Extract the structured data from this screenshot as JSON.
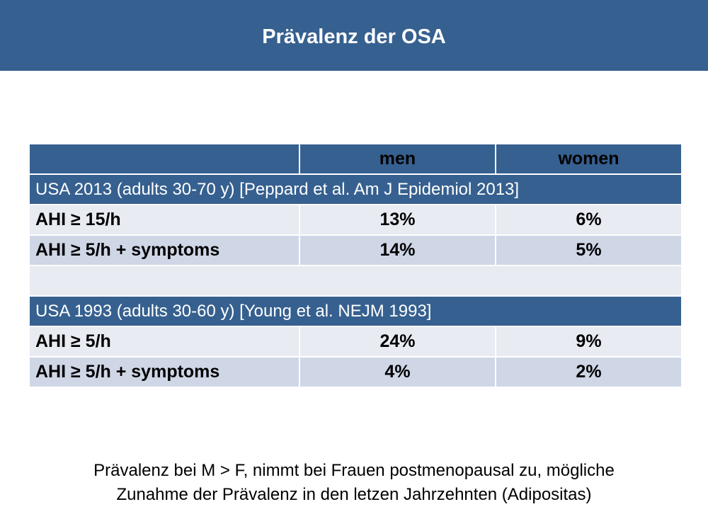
{
  "title": "Prävalenz der OSA",
  "table": {
    "headers": [
      "",
      "men",
      "women"
    ],
    "sections": [
      {
        "heading": "USA 2013 (adults 30-70 y) [Peppard et al. Am J Epidemiol 2013]",
        "rows": [
          {
            "label": "AHI ≥ 15/h",
            "men": "13%",
            "women": "6%"
          },
          {
            "label": "AHI ≥ 5/h + symptoms",
            "men": "14%",
            "women": "5%"
          }
        ]
      },
      {
        "heading": "USA 1993 (adults 30-60 y) [Young et al. NEJM 1993]",
        "rows": [
          {
            "label": "AHI ≥ 5/h",
            "men": "24%",
            "women": "9%"
          },
          {
            "label": "AHI ≥ 5/h + symptoms",
            "men": "4%",
            "women": "2%"
          }
        ]
      }
    ]
  },
  "footnote": {
    "line1": "Prävalenz bei M > F, nimmt bei Frauen postmenopausal zu, mögliche",
    "line2": "Zunahme der Prävalenz in den letzen Jahrzehnten (Adipositas)"
  }
}
